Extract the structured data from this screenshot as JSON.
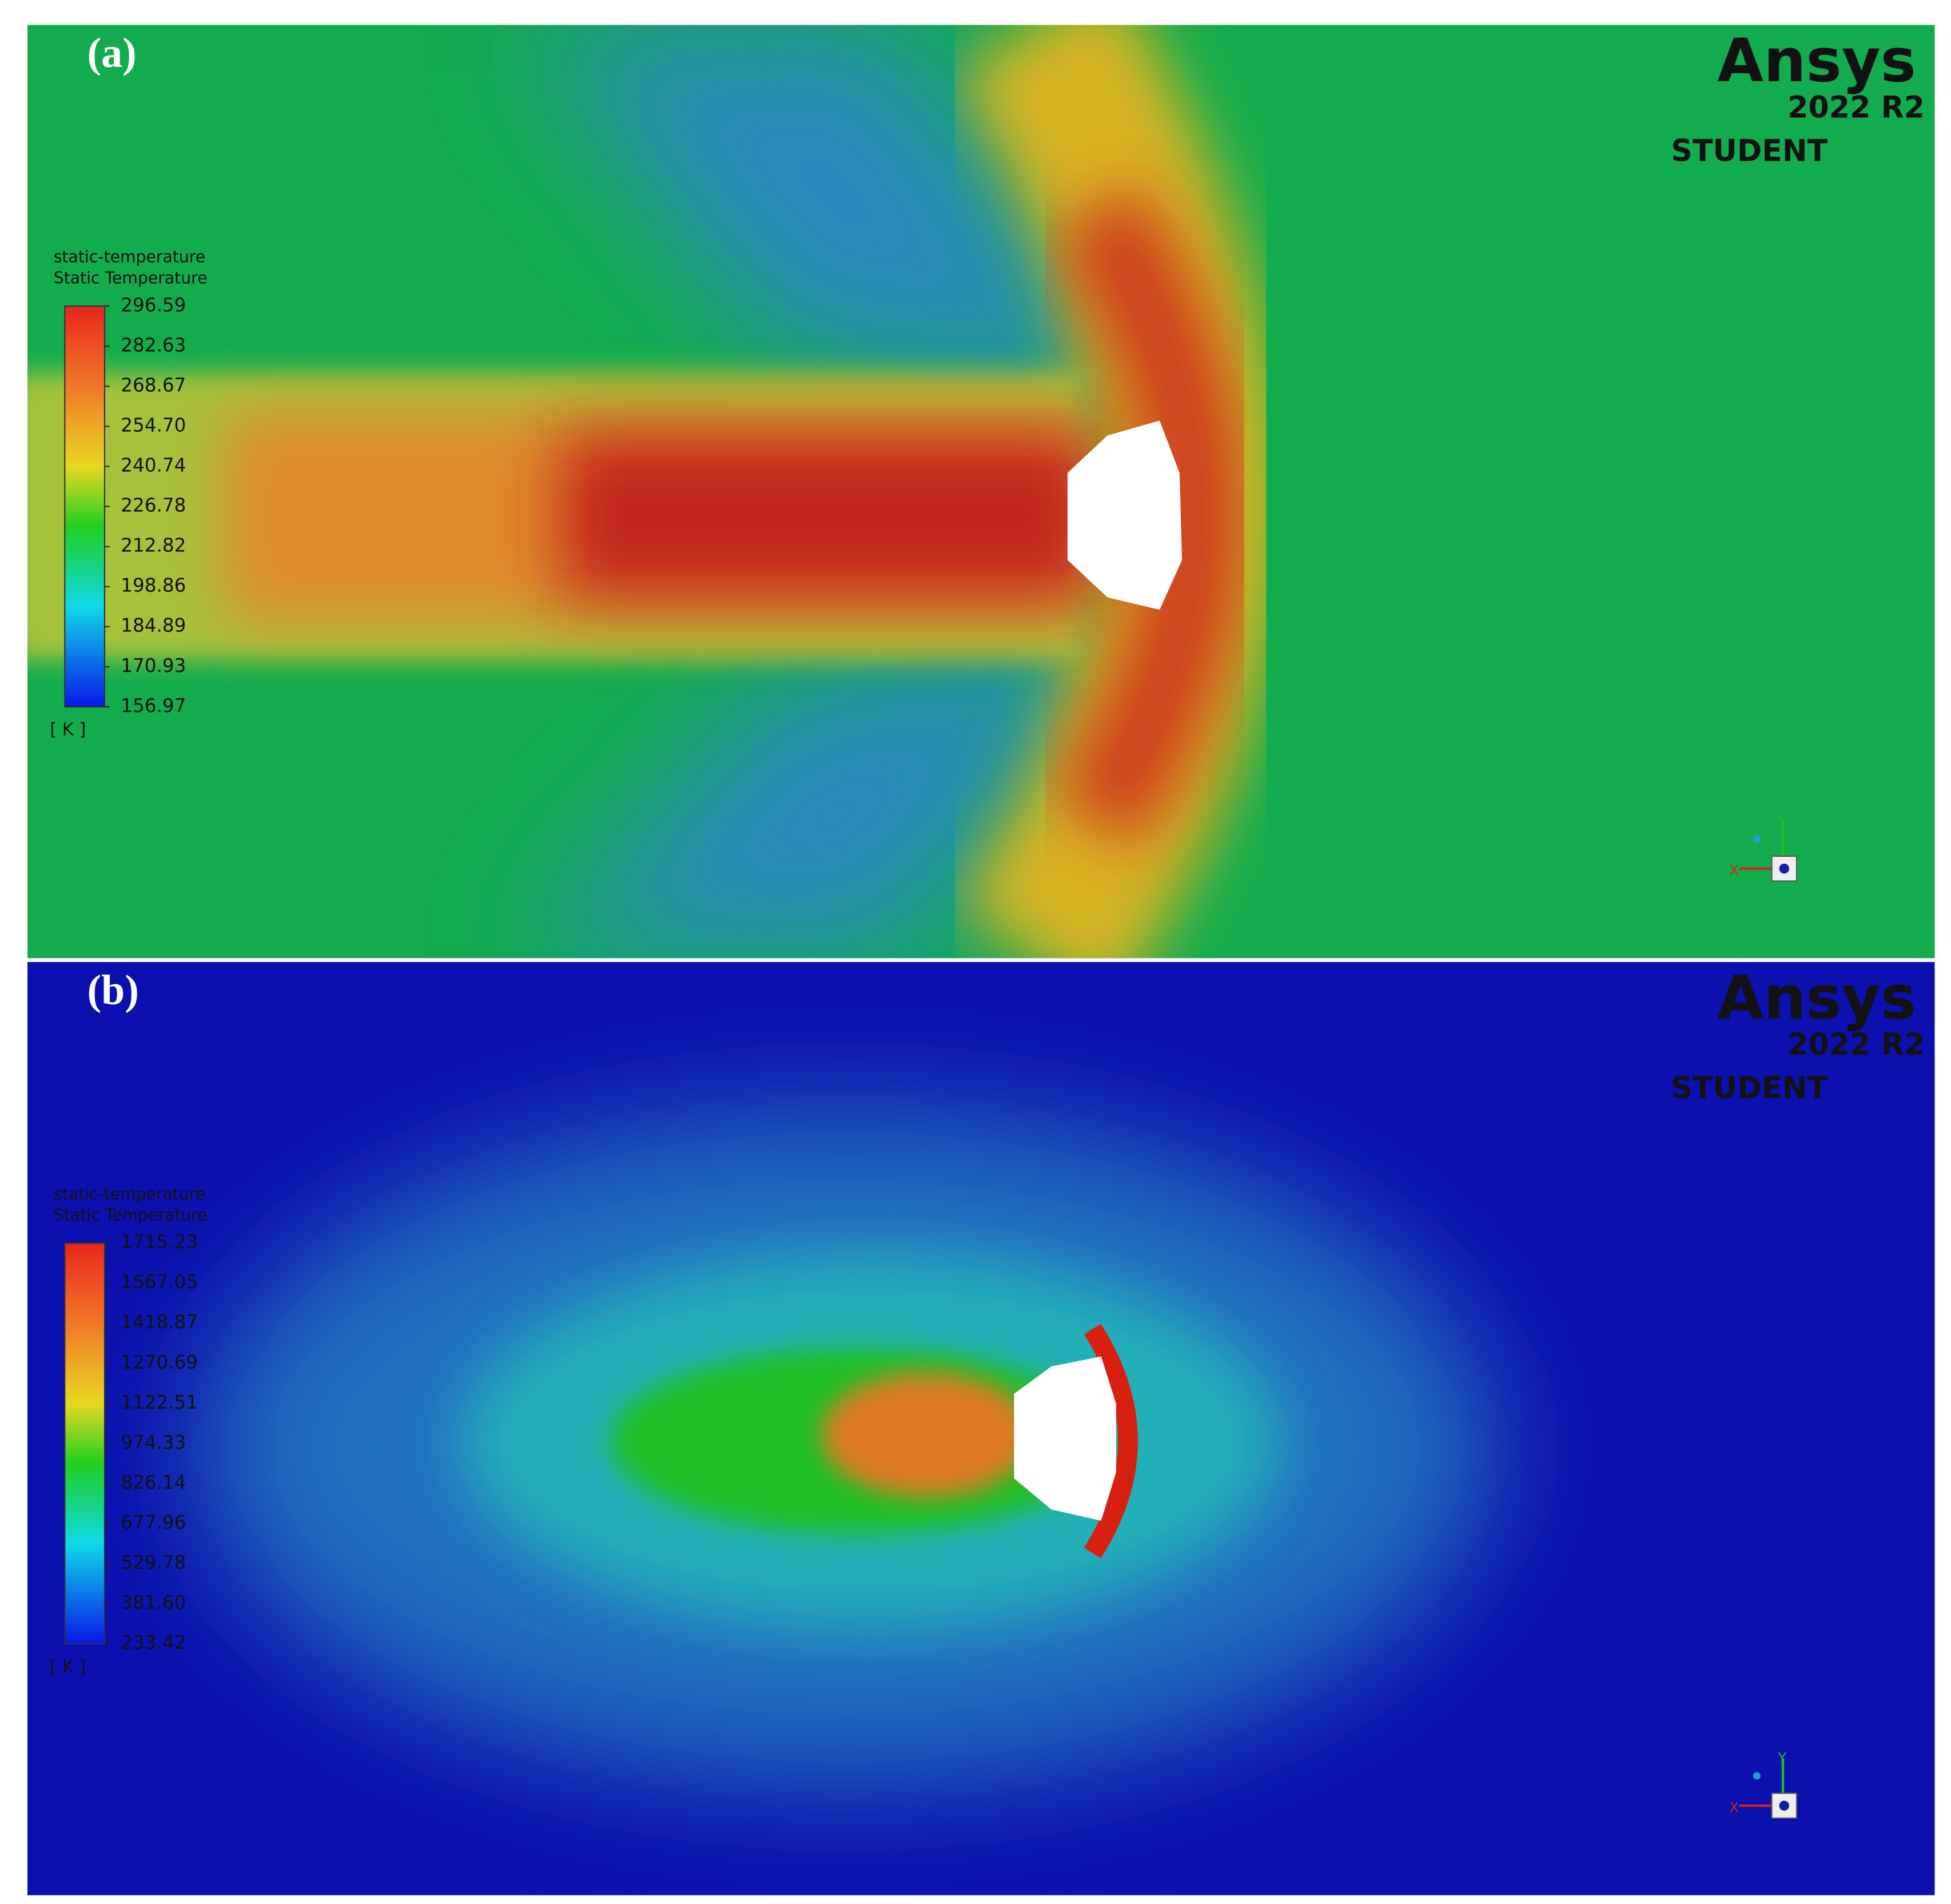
{
  "panels": [
    {
      "label": "(a)",
      "brand": "Ansys",
      "version": "2022 R2",
      "edition": "STUDENT",
      "legend": {
        "title": "static-temperature",
        "subtitle": "Static Temperature",
        "ticks": [
          "296.59",
          "282.63",
          "268.67",
          "254.70",
          "240.74",
          "226.78",
          "212.82",
          "198.86",
          "184.89",
          "170.93",
          "156.97"
        ],
        "unit": "[ K ]"
      },
      "axes": {
        "x": "X",
        "y": "Y"
      }
    },
    {
      "label": "(b)",
      "brand": "Ansys",
      "version": "2022 R2",
      "edition": "STUDENT",
      "legend": {
        "title": "static-temperature",
        "subtitle": "Static Temperature",
        "ticks": [
          "1715.23",
          "1567.05",
          "1418.87",
          "1270.69",
          "1122.51",
          "974.33",
          "826.14",
          "677.96",
          "529.78",
          "381.60",
          "233.42"
        ],
        "unit": "[ K ]"
      },
      "axes": {
        "x": "X",
        "y": "Y"
      }
    }
  ]
}
